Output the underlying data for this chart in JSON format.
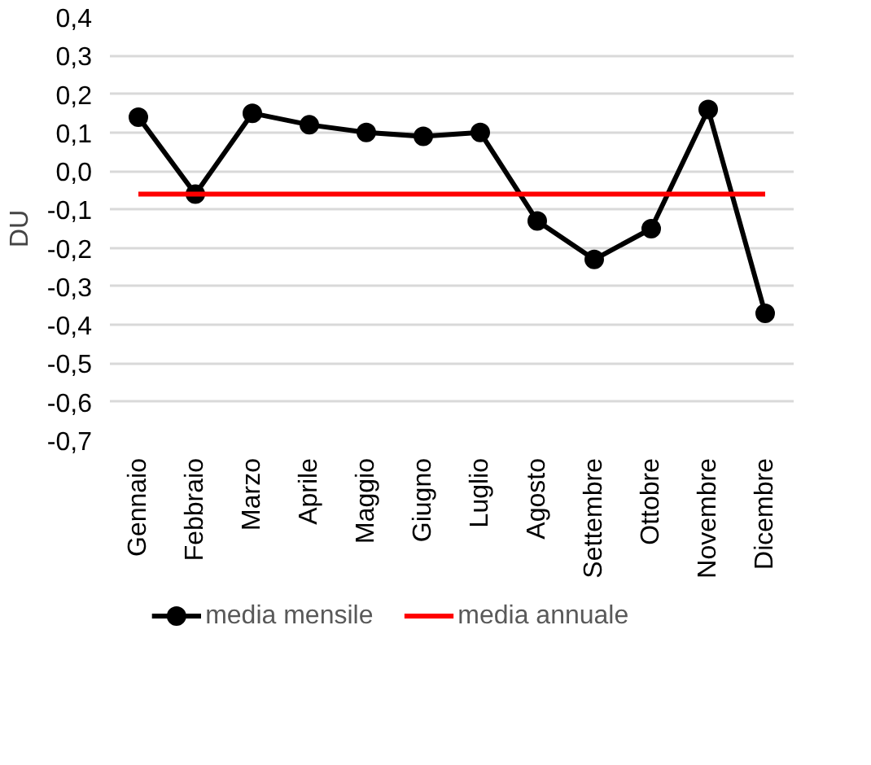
{
  "chart_data": {
    "type": "line",
    "ylabel": "DU",
    "categories": [
      "Gennaio",
      "Febbraio",
      "Marzo",
      "Aprile",
      "Maggio",
      "Giugno",
      "Luglio",
      "Agosto",
      "Settembre",
      "Ottobre",
      "Novembre",
      "Dicembre"
    ],
    "series": [
      {
        "name": "media mensile",
        "color": "#000000",
        "marker": "circle",
        "values": [
          0.14,
          -0.06,
          0.15,
          0.12,
          0.1,
          0.09,
          0.1,
          -0.13,
          -0.23,
          -0.15,
          0.16,
          -0.37
        ]
      },
      {
        "name": "media annuale",
        "color": "#ff0000",
        "marker": "none",
        "values": [
          -0.06,
          -0.06,
          -0.06,
          -0.06,
          -0.06,
          -0.06,
          -0.06,
          -0.06,
          -0.06,
          -0.06,
          -0.06,
          -0.06
        ]
      }
    ],
    "ylim": [
      -0.7,
      0.4
    ],
    "yticks": [
      {
        "value": -0.7,
        "label": "-0,7"
      },
      {
        "value": -0.6,
        "label": "-0,6"
      },
      {
        "value": -0.5,
        "label": "-0,5"
      },
      {
        "value": -0.4,
        "label": "-0,4"
      },
      {
        "value": -0.3,
        "label": "-0,3"
      },
      {
        "value": -0.2,
        "label": "-0,2"
      },
      {
        "value": -0.1,
        "label": "-0,1"
      },
      {
        "value": 0,
        "label": "0,0"
      },
      {
        "value": 0.1,
        "label": "0,1"
      },
      {
        "value": 0.2,
        "label": "0,2"
      },
      {
        "value": 0.3,
        "label": "0,3"
      },
      {
        "value": 0.4,
        "label": "0,4"
      }
    ],
    "grid": "y",
    "legend": "bottom",
    "line_style": "solid"
  }
}
